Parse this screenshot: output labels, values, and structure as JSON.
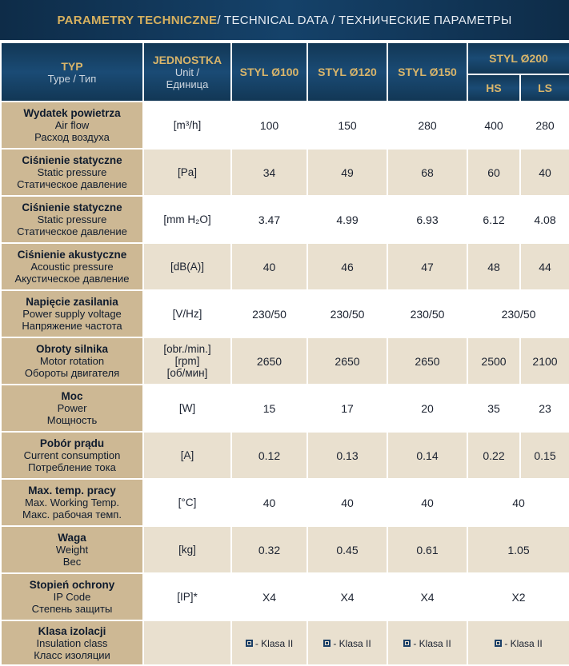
{
  "title": {
    "pl": "PARAMETRY TECHNICZNE",
    "rest": " / TECHNICAL DATA / ТЕХНИЧЕСКИЕ ПАРАМЕТРЫ"
  },
  "header": {
    "typ_pl": "TYP",
    "typ_sub": "Type / Тип",
    "unit_pl": "JEDNOSTKA",
    "unit_sub1": "Unit /",
    "unit_sub2": "Единица",
    "col1": "STYL Ø100",
    "col2": "STYL Ø120",
    "col3": "STYL Ø150",
    "col4": "STYL Ø200",
    "col4_hs": "HS",
    "col4_ls": "LS"
  },
  "rows": [
    {
      "pl": "Wydatek powietrza",
      "en": "Air flow",
      "ru": "Расход воздуха",
      "unit": "[m³/h]",
      "v": [
        "100",
        "150",
        "280",
        "400",
        "280"
      ]
    },
    {
      "pl": "Ciśnienie statyczne",
      "en": "Static pressure",
      "ru": "Статическое давление",
      "unit": "[Pa]",
      "v": [
        "34",
        "49",
        "68",
        "60",
        "40"
      ]
    },
    {
      "pl": "Ciśnienie statyczne",
      "en": "Static pressure",
      "ru": "Статическое давление",
      "unit": "[mm H₂O]",
      "v": [
        "3.47",
        "4.99",
        "6.93",
        "6.12",
        "4.08"
      ]
    },
    {
      "pl": "Ciśnienie akustyczne",
      "en": "Acoustic pressure",
      "ru": "Акустическое давление",
      "unit": "[dB(A)]",
      "v": [
        "40",
        "46",
        "47",
        "48",
        "44"
      ]
    },
    {
      "pl": "Napięcie zasilania",
      "en": "Power supply voltage",
      "ru": "Напряжение частота",
      "unit": "[V/Hz]",
      "v": [
        "230/50",
        "230/50",
        "230/50",
        "230/50"
      ]
    },
    {
      "pl": "Obroty silnika",
      "en": "Motor rotation",
      "ru": "Обороты двигателя",
      "unit1": "[obr./min.]",
      "unit2": "[rpm]",
      "unit3": "[об/мин]",
      "v": [
        "2650",
        "2650",
        "2650",
        "2500",
        "2100"
      ]
    },
    {
      "pl": "Moc",
      "en": "Power",
      "ru": "Мощность",
      "unit": "[W]",
      "v": [
        "15",
        "17",
        "20",
        "35",
        "23"
      ]
    },
    {
      "pl": "Pobór prądu",
      "en": "Current consumption",
      "ru": "Потребление тока",
      "unit": "[A]",
      "v": [
        "0.12",
        "0.13",
        "0.14",
        "0.22",
        "0.15"
      ]
    },
    {
      "pl": "Max. temp. pracy",
      "en": "Max. Working Temp.",
      "ru": "Макс. рабочая темп.",
      "unit": "[°C]",
      "v": [
        "40",
        "40",
        "40",
        "40"
      ]
    },
    {
      "pl": "Waga",
      "en": "Weight",
      "ru": "Вес",
      "unit": "[kg]",
      "v": [
        "0.32",
        "0.45",
        "0.61",
        "1.05"
      ]
    },
    {
      "pl": "Stopień ochrony",
      "en": "IP Code",
      "ru": "Степень защиты",
      "unit": "[IP]*",
      "v": [
        "X4",
        "X4",
        "X4",
        "X2"
      ]
    },
    {
      "pl": "Klasa izolacji",
      "en": "Insulation class",
      "ru": "Класс изоляции",
      "unit": "",
      "v": [
        "- Klasa II",
        "- Klasa II",
        "- Klasa II",
        "- Klasa II"
      ]
    }
  ],
  "colors": {
    "header_bg": "#15426a",
    "header_gold": "#d7b15f",
    "label_bg": "#cdb894",
    "band_bg": "#e9e0cf"
  },
  "icons": {
    "insulation": "class-ii-square-icon"
  }
}
